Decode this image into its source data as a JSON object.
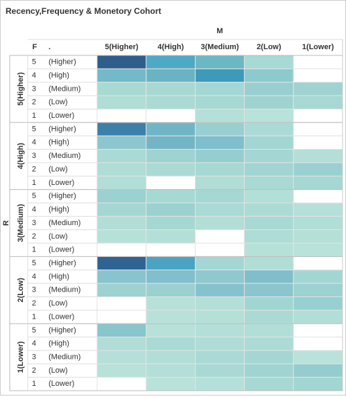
{
  "title": "Recency,Frequency & Monetory Cohort",
  "column_header": "M",
  "row_header": "R",
  "f_header": "F",
  "label_header": ".",
  "columns": [
    "5(Higher)",
    "4(High)",
    "3(Medium)",
    "2(Low)",
    "1(Lower)"
  ],
  "groups": [
    {
      "label": "5(Higher)",
      "rows": [
        {
          "f": "5",
          "label": "(Higher)",
          "cells": [
            "#2f5e8c",
            "#4ea9c4",
            "#6cb7c4",
            "#a7dad5",
            null
          ]
        },
        {
          "f": "4",
          "label": "(High)",
          "cells": [
            "#73b9c8",
            "#6ab3c3",
            "#3d9ab8",
            "#8dcace",
            null
          ]
        },
        {
          "f": "3",
          "label": "(Medium)",
          "cells": [
            "#a8dad4",
            "#a7d9d3",
            "#a3d7d4",
            "#98cfd1",
            "#9fd3d1"
          ]
        },
        {
          "f": "2",
          "label": "(Low)",
          "cells": [
            "#b0ddd6",
            "#abdad5",
            "#a6d8d4",
            "#9fd3d2",
            "#a7d8d4"
          ]
        },
        {
          "f": "1",
          "label": "(Lower)",
          "cells": [
            null,
            null,
            "#b4e0d8",
            "#b8e2da",
            null
          ]
        }
      ]
    },
    {
      "label": "4(High)",
      "rows": [
        {
          "f": "5",
          "label": "(Higher)",
          "cells": [
            "#3c7fa8",
            "#6fb5c6",
            "#98cfd0",
            "#aadbd6",
            null
          ]
        },
        {
          "f": "4",
          "label": "(High)",
          "cells": [
            "#8cc6ce",
            "#72b6c6",
            "#7dbfca",
            "#a2d6d3",
            null
          ]
        },
        {
          "f": "3",
          "label": "(Medium)",
          "cells": [
            "#a9dad5",
            "#9ed3d2",
            "#96ced0",
            "#a4d7d4",
            "#b3dfd8"
          ]
        },
        {
          "f": "2",
          "label": "(Low)",
          "cells": [
            "#b0ddd6",
            "#abdad5",
            "#a6d8d4",
            "#a1d4d2",
            "#9ad0d1"
          ]
        },
        {
          "f": "1",
          "label": "(Lower)",
          "cells": [
            "#b1ded6",
            null,
            "#b0ddd6",
            "#a8d9d4",
            "#a5d7d3"
          ]
        }
      ]
    },
    {
      "label": "3(Medium)",
      "rows": [
        {
          "f": "5",
          "label": "(Higher)",
          "cells": [
            "#9bd1d0",
            "#a7d9d4",
            "#a5d8d3",
            "#b2dfd7",
            null
          ]
        },
        {
          "f": "4",
          "label": "(High)",
          "cells": [
            "#a4d7d3",
            "#9bd1d0",
            "#a9dad5",
            "#acdbd5",
            "#b5e0d9"
          ]
        },
        {
          "f": "3",
          "label": "(Medium)",
          "cells": [
            "#b2ded7",
            "#a5d8d3",
            "#b1ded7",
            "#a9d9d4",
            "#b1ded7"
          ]
        },
        {
          "f": "2",
          "label": "(Low)",
          "cells": [
            "#b6e1d9",
            "#b3dfd8",
            null,
            "#aedcd6",
            "#b4e0d8"
          ]
        },
        {
          "f": "1",
          "label": "(Lower)",
          "cells": [
            null,
            null,
            null,
            "#b6e1d9",
            "#b8e2da"
          ]
        }
      ]
    },
    {
      "label": "2(Low)",
      "rows": [
        {
          "f": "5",
          "label": "(Higher)",
          "cells": [
            "#2f6393",
            "#4aa3c1",
            "#a4d7d3",
            "#b0ddd6",
            null
          ]
        },
        {
          "f": "4",
          "label": "(High)",
          "cells": [
            "#88c4cd",
            "#80bfcb",
            "#8fc8ce",
            "#7fbfcb",
            "#a2d6d3"
          ]
        },
        {
          "f": "3",
          "label": "(Medium)",
          "cells": [
            "#9dd2d1",
            "#9ad0d0",
            "#85c3cc",
            "#8bc6ce",
            "#9cd2d1"
          ]
        },
        {
          "f": "2",
          "label": "(Low)",
          "cells": [
            null,
            "#b6e1d9",
            "#b3dfd8",
            "#a1d5d2",
            "#98cfd1"
          ]
        },
        {
          "f": "1",
          "label": "(Lower)",
          "cells": [
            null,
            "#b7e1d9",
            "#b4e0d8",
            "#abdad5",
            "#b1ded6"
          ]
        }
      ]
    },
    {
      "label": "1(Lower)",
      "rows": [
        {
          "f": "5",
          "label": "(Higher)",
          "cells": [
            "#89c5cd",
            "#b7e1d9",
            "#b3dfd8",
            "#b1ded7",
            null
          ]
        },
        {
          "f": "4",
          "label": "(High)",
          "cells": [
            "#b0ddd6",
            "#a9dad5",
            "#aedcd6",
            "#acdbd5",
            null
          ]
        },
        {
          "f": "3",
          "label": "(Medium)",
          "cells": [
            "#b5e0d9",
            "#b1ded7",
            "#a9dad5",
            "#a4d7d3",
            "#b8e2da"
          ]
        },
        {
          "f": "2",
          "label": "(Low)",
          "cells": [
            "#b7e1d9",
            "#b3dfd8",
            "#a8d9d4",
            "#9fd4d2",
            "#94cdd0"
          ]
        },
        {
          "f": "1",
          "label": "(Lower)",
          "cells": [
            null,
            "#b8e2da",
            "#b5e0d9",
            "#a7d8d4",
            "#a2d6d3"
          ]
        }
      ]
    }
  ]
}
